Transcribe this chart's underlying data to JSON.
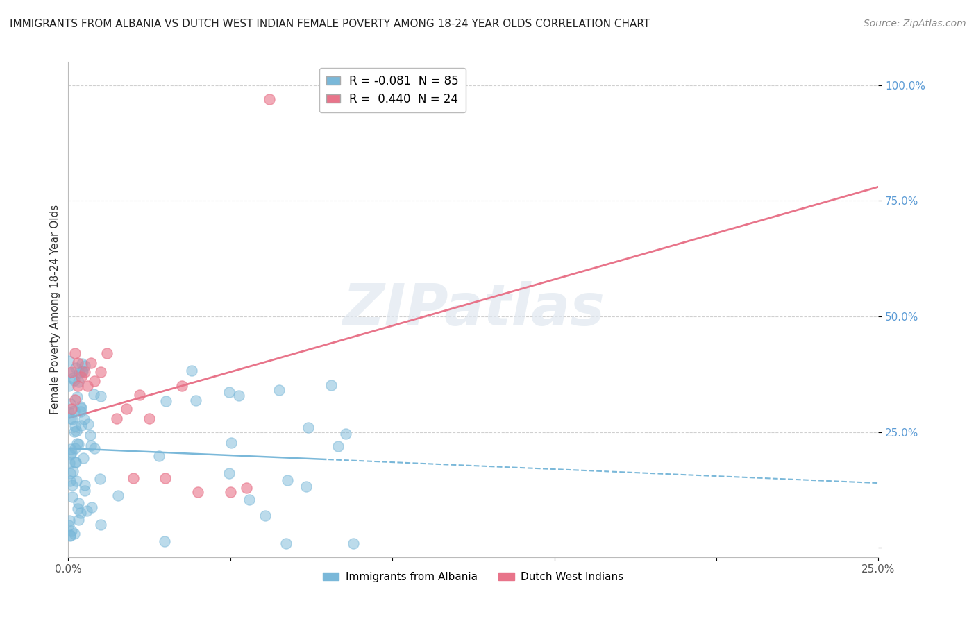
{
  "title": "IMMIGRANTS FROM ALBANIA VS DUTCH WEST INDIAN FEMALE POVERTY AMONG 18-24 YEAR OLDS CORRELATION CHART",
  "source": "Source: ZipAtlas.com",
  "ylabel": "Female Poverty Among 18-24 Year Olds",
  "xlim": [
    0.0,
    0.25
  ],
  "ylim": [
    -0.02,
    1.05
  ],
  "albania_color": "#7ab8d9",
  "dutch_color": "#e8748a",
  "albania_R": -0.081,
  "albania_N": 85,
  "dutch_R": 0.44,
  "dutch_N": 24,
  "watermark": "ZIPatlas",
  "background_color": "#ffffff",
  "ytick_color": "#5b9bd5",
  "title_fontsize": 11,
  "source_fontsize": 10
}
